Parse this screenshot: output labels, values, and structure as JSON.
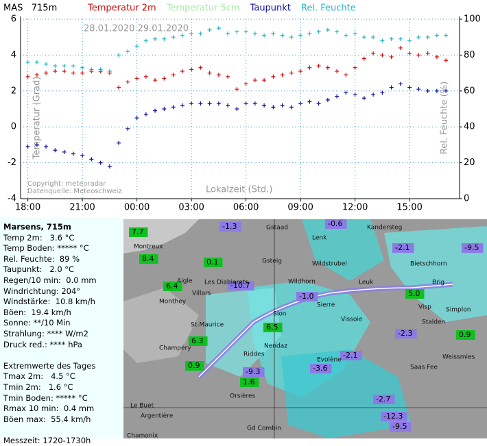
{
  "chart_data": {
    "type": "scatter",
    "title": "MAS   715m",
    "dates": "28.01.2020 29.01.2020",
    "y_label": "Temperatur (Grad)",
    "y2_label": "Rel. Feuchte (%)",
    "x_label": "Lokalzeit (Std.)",
    "credits": [
      "Copyright: meteoradar",
      "Datenquelle: Meteoschweiz"
    ],
    "xlim": [
      -0.4,
      23.75
    ],
    "xticks": [
      {
        "value": 0,
        "label": "18:00"
      },
      {
        "value": 3,
        "label": "21:00"
      },
      {
        "value": 6,
        "label": "00:00"
      },
      {
        "value": 9,
        "label": "03:00"
      },
      {
        "value": 12,
        "label": "06:00"
      },
      {
        "value": 15,
        "label": "09:00"
      },
      {
        "value": 18,
        "label": "12:00"
      },
      {
        "value": 21,
        "label": "15:00"
      }
    ],
    "ylim": [
      -4,
      6
    ],
    "yticks": [
      -4,
      -2,
      0,
      2,
      4,
      6
    ],
    "y2lim": [
      0,
      100
    ],
    "y2ticks": [
      0,
      20,
      40,
      60,
      80,
      100
    ],
    "grid": true,
    "x": [
      0,
      0.5,
      1,
      1.5,
      2,
      2.5,
      3,
      3.5,
      4,
      4.5,
      5,
      5.5,
      6,
      6.5,
      7,
      7.5,
      8,
      8.5,
      9,
      9.5,
      10,
      10.5,
      11,
      11.5,
      12,
      12.5,
      13,
      13.5,
      14,
      14.5,
      15,
      15.5,
      16,
      16.5,
      17,
      17.5,
      18,
      18.5,
      19,
      19.5,
      20,
      20.5,
      21,
      21.5,
      22,
      22.5,
      23
    ],
    "series": [
      {
        "name": "Temperatur 2m",
        "color": "#d01010",
        "values": [
          2.8,
          2.9,
          3.0,
          3.1,
          3.1,
          3.0,
          3.0,
          3.1,
          3.1,
          3.0,
          2.2,
          2.5,
          2.7,
          2.8,
          2.6,
          2.7,
          2.9,
          3.1,
          3.2,
          3.3,
          3.0,
          2.9,
          2.8,
          2.1,
          2.4,
          2.6,
          2.6,
          2.8,
          2.9,
          3.0,
          3.1,
          3.3,
          3.4,
          3.3,
          3.1,
          2.9,
          3.3,
          3.8,
          4.1,
          4.0,
          3.9,
          4.4,
          4.1,
          4.0,
          4.1,
          3.9,
          3.7
        ]
      },
      {
        "name": "Temperatur 5cm",
        "color": "#a0f0a0",
        "values": [
          null,
          null,
          null,
          null,
          null,
          null,
          null,
          null,
          null,
          null,
          null,
          null,
          null,
          null,
          null,
          null,
          null,
          null,
          null,
          null,
          null,
          null,
          null,
          null,
          null,
          null,
          null,
          null,
          null,
          null,
          null,
          null,
          null,
          null,
          null,
          null,
          null,
          null,
          null,
          null,
          null,
          null,
          null,
          null,
          null,
          null,
          null
        ]
      },
      {
        "name": "Taupunkt",
        "color": "#1010a0",
        "values": [
          -1.1,
          -1.0,
          -1.1,
          -1.3,
          -1.4,
          -1.5,
          -1.6,
          -1.8,
          -2.0,
          -2.2,
          -0.9,
          -0.1,
          0.5,
          0.7,
          0.9,
          1.0,
          1.1,
          1.2,
          1.3,
          1.3,
          1.3,
          1.3,
          1.2,
          1.0,
          1.3,
          1.3,
          1.2,
          1.1,
          1.2,
          1.1,
          1.3,
          1.4,
          1.3,
          1.5,
          1.7,
          1.9,
          1.8,
          1.6,
          1.8,
          1.9,
          2.2,
          2.4,
          2.2,
          2.1,
          2.0,
          2.0,
          2.0
        ]
      },
      {
        "name": "Rel. Feuchte",
        "color": "#20b8c8",
        "axis": "y2",
        "values": [
          76,
          76,
          75,
          74,
          74,
          74,
          73,
          72,
          72,
          71,
          80,
          82,
          85,
          88,
          89,
          89,
          90,
          91,
          92,
          92,
          94,
          95,
          92,
          93,
          93,
          92,
          91,
          92,
          91,
          90,
          91,
          92,
          93,
          94,
          93,
          91,
          92,
          90,
          90,
          88,
          89,
          89,
          88,
          90,
          90,
          91,
          91
        ]
      }
    ]
  },
  "panel": {
    "title": "Marsens, 715m",
    "lines": [
      "Temp 2m:   3.6 °C",
      "Temp Boden: ***** °C",
      "Rel. Feuchte:  89 %",
      "Taupunkt:   2.0 °C",
      "Regen/10 min:  0.0 mm",
      "Windrichtung: 204°",
      "Windstärke:  10.8 km/h",
      "Böen:  19.4 km/h",
      "Sonne: **/10 Min",
      "Strahlung: **** W/m2",
      "Druck red.: **** hPa"
    ],
    "extremes_title": "Extremwerte des Tages",
    "extremes": [
      "Tmax 2m:   4.5 °C",
      "Tmin 2m:   1.6 °C",
      "Tmin Boden: ***** °C",
      "Rmax 10 min:  0.4 mm",
      "Böen max:  55.4 km/h"
    ],
    "time": "Messzeit: 1720-1730h"
  },
  "map": {
    "stations": [
      "7.7",
      "8.4",
      "0.1",
      "6.4",
      "6.3",
      "0.9",
      "6.5",
      "1.6",
      "5.0",
      "0.9"
    ],
    "cells": [
      "-1.3",
      "-0.6",
      "-2.1",
      "-9.5",
      "-10.7",
      "-1.0",
      "-2.3",
      "-2.1",
      "-3.6",
      "-9.3",
      "-2.7",
      "-12.3",
      "-9.5"
    ],
    "places": [
      "Montreux",
      "Monthey",
      "Aigle",
      "Villars",
      "Les Diablerets",
      "St-Maurice",
      "Champéry",
      "Sion",
      "Sierre",
      "Riddes",
      "Nendaz",
      "Vissoie",
      "Evolène",
      "Leuk",
      "Visp",
      "Brig",
      "Stalden",
      "Saas Fee",
      "Simplon",
      "Weissmies",
      "Bietschhorn",
      "Wildhorn",
      "Wildstrubel",
      "Gsteig",
      "Gstaad",
      "Lenk",
      "Kandersteg",
      "Argentière",
      "Chamonix",
      "Le Buet",
      "Orsières",
      "Gd Combin"
    ]
  }
}
